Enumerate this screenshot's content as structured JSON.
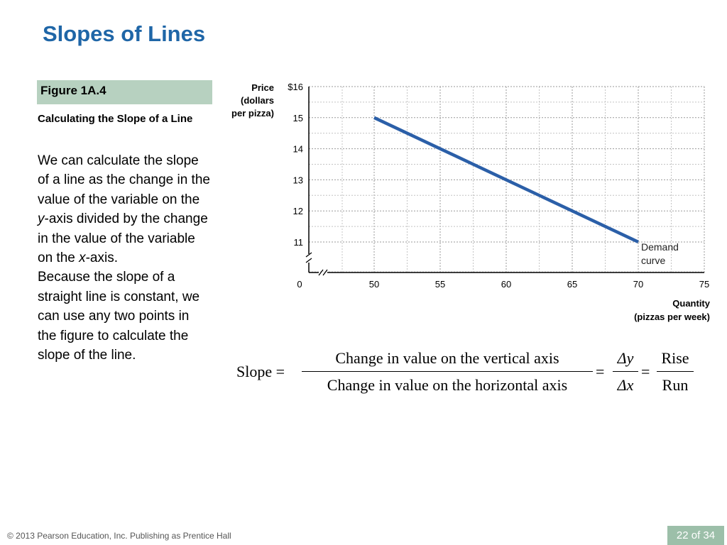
{
  "slide": {
    "title": "Slopes of Lines",
    "figure_label": "Figure 1A.4",
    "figure_subtitle": "Calculating the Slope of a Line",
    "body_text_1a": "We can calculate the slope of a line as the change in the value of the variable on the ",
    "body_var_y": "y",
    "body_text_1b": "-axis divided by the change in the value of the variable on the ",
    "body_var_x": "x",
    "body_text_1c": "-axis.",
    "body_text_2": "Because the slope of a straight line is constant, we can use any two points in the figure to calculate the slope of the line."
  },
  "formula": {
    "lhs": "Slope =",
    "numerator": "Change in value on the vertical axis",
    "denominator": "Change in value on the horizontal axis",
    "eq": "=",
    "delta_y": "Δy",
    "delta_x": "Δx",
    "rise": "Rise",
    "run": "Run"
  },
  "chart_data": {
    "type": "line",
    "y_axis_title": [
      "Price",
      "(dollars",
      "per pizza)"
    ],
    "x_axis_title": [
      "Quantity",
      "(pizzas per week)"
    ],
    "x_ticks": [
      0,
      50,
      55,
      60,
      65,
      70,
      75
    ],
    "x_tick_labels": [
      "0",
      "50",
      "55",
      "60",
      "65",
      "70",
      "75"
    ],
    "y_ticks": [
      11,
      12,
      13,
      14,
      15,
      16
    ],
    "y_tick_labels": [
      "11",
      "12",
      "13",
      "14",
      "15",
      "$16"
    ],
    "xlim": [
      50,
      75
    ],
    "ylim": [
      11,
      16
    ],
    "axis_breaks": true,
    "grid": true,
    "series": [
      {
        "name": "Demand curve",
        "label_lines": [
          "Demand",
          "curve"
        ],
        "points": [
          [
            50,
            15
          ],
          [
            70,
            11
          ]
        ],
        "color": "#2b5fa8"
      }
    ]
  },
  "footer": {
    "copyright": "© 2013 Pearson Education, Inc. Publishing as Prentice Hall",
    "page": "22 of 34"
  },
  "colors": {
    "title": "#1f66a7",
    "figure_box": "#b7d1c0",
    "page_box": "#9cbfa9",
    "line": "#2b5fa8",
    "grid": "#9a9a9a"
  }
}
